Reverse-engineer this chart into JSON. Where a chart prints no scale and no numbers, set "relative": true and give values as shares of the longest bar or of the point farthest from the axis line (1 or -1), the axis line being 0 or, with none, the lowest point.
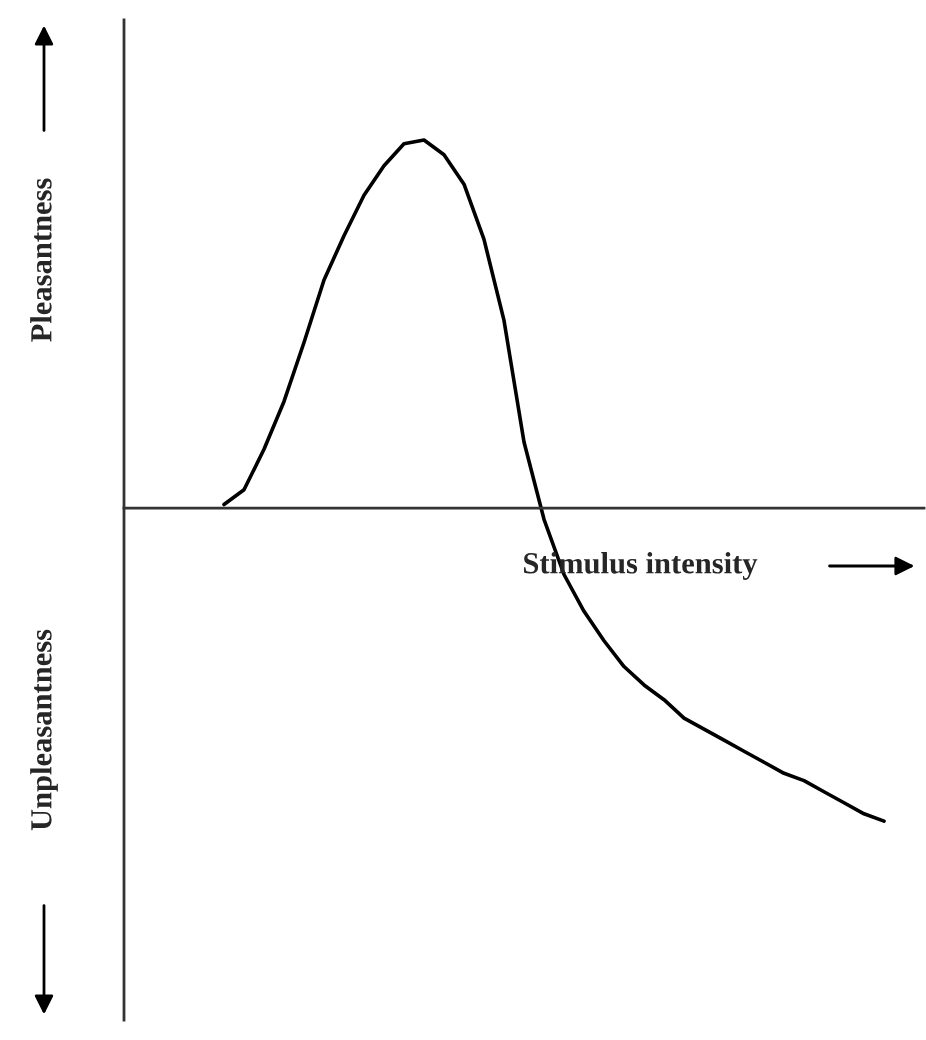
{
  "chart_data": {
    "type": "line",
    "relative": true,
    "xlabel": "Stimulus intensity",
    "ylabel": "Pleasantness",
    "annotations": [
      "Unpleasantness"
    ],
    "categories": [
      null,
      null,
      null,
      null,
      null,
      null,
      null,
      null,
      null,
      null,
      null,
      null,
      null,
      null,
      null,
      null,
      null,
      null,
      null,
      null,
      null,
      null,
      null,
      null,
      null,
      null,
      null,
      null,
      null,
      null,
      null,
      null,
      null,
      null,
      null,
      null,
      null,
      null,
      null,
      null,
      null
    ],
    "series": [
      {
        "color": "#000000",
        "values": [
          null,
          null,
          null,
          null,
          null,
          0.01,
          0.05,
          0.16,
          0.29,
          0.45,
          0.62,
          0.74,
          0.85,
          0.93,
          0.99,
          1.0,
          0.96,
          0.88,
          0.73,
          0.51,
          0.18,
          -0.03,
          -0.18,
          -0.28,
          -0.36,
          -0.43,
          -0.48,
          -0.52,
          -0.57,
          -0.6,
          -0.63,
          -0.66,
          -0.69,
          -0.72,
          -0.74,
          -0.77,
          -0.8,
          -0.83,
          -0.85,
          null,
          null
        ]
      }
    ],
    "marker": "none"
  }
}
